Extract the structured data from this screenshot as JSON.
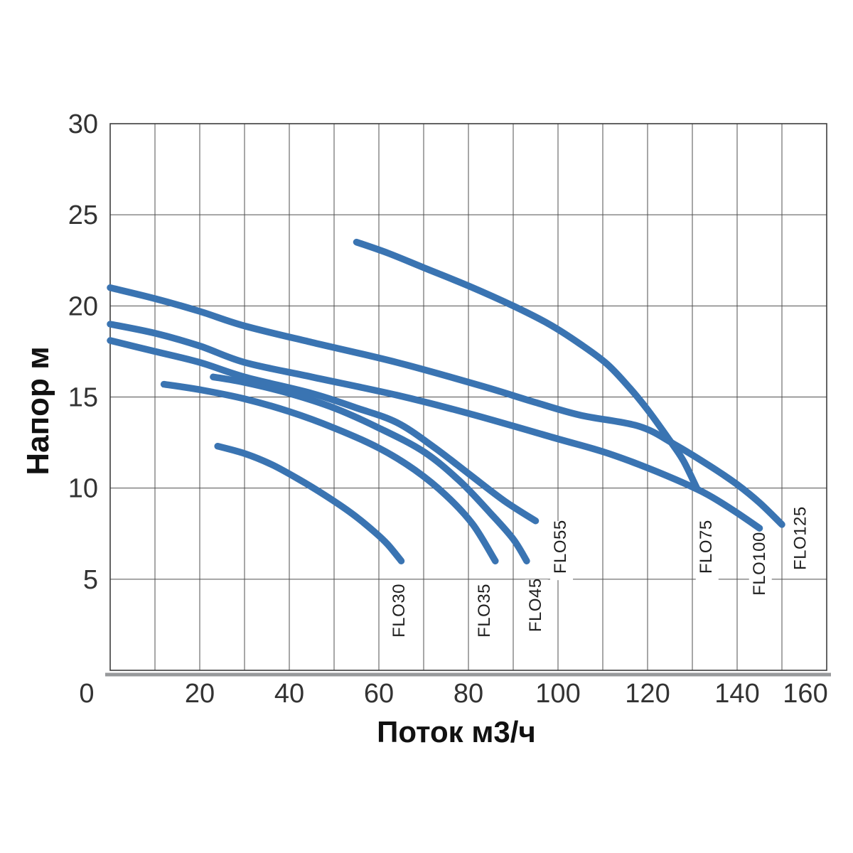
{
  "chart_data": {
    "type": "line",
    "title": "",
    "xlabel": "Поток м3/ч",
    "ylabel": "Напор м",
    "xlim": [
      0,
      160
    ],
    "ylim": [
      0,
      30
    ],
    "x_grid_step": 10,
    "y_grid_step": 5,
    "x_tick_step": 20,
    "x_tick_labels": [
      "0",
      "20",
      "40",
      "60",
      "80",
      "100",
      "120",
      "140",
      "160"
    ],
    "y_tick_labels": [
      "5",
      "10",
      "15",
      "20",
      "25",
      "30"
    ],
    "grid": true,
    "legend_position": "rotated-labels-at-curve-ends",
    "series": [
      {
        "name": "FLO30",
        "points": [
          [
            24,
            12.3
          ],
          [
            30,
            11.9
          ],
          [
            36,
            11.3
          ],
          [
            42,
            10.5
          ],
          [
            48,
            9.6
          ],
          [
            54,
            8.6
          ],
          [
            59,
            7.6
          ],
          [
            62,
            6.9
          ],
          [
            65,
            6.0
          ]
        ],
        "label": {
          "flow": 64.8,
          "head": 1.8
        }
      },
      {
        "name": "FLO35",
        "points": [
          [
            12,
            15.7
          ],
          [
            20,
            15.4
          ],
          [
            30,
            14.9
          ],
          [
            40,
            14.2
          ],
          [
            50,
            13.3
          ],
          [
            60,
            12.2
          ],
          [
            68,
            11.0
          ],
          [
            75,
            9.6
          ],
          [
            81,
            8.0
          ],
          [
            86,
            6.0
          ]
        ],
        "label": {
          "flow": 83.8,
          "head": 1.8
        }
      },
      {
        "name": "FLO45",
        "points": [
          [
            23,
            16.1
          ],
          [
            30,
            15.8
          ],
          [
            40,
            15.2
          ],
          [
            50,
            14.4
          ],
          [
            60,
            13.3
          ],
          [
            70,
            12.0
          ],
          [
            78,
            10.4
          ],
          [
            85,
            8.6
          ],
          [
            90,
            7.2
          ],
          [
            93,
            6.0
          ]
        ],
        "label": {
          "flow": 95.2,
          "head": 2.1
        }
      },
      {
        "name": "FLO55",
        "points": [
          [
            0,
            18.1
          ],
          [
            10,
            17.5
          ],
          [
            20,
            16.9
          ],
          [
            30,
            16.1
          ],
          [
            45,
            15.2
          ],
          [
            55,
            14.4
          ],
          [
            64,
            13.6
          ],
          [
            72,
            12.3
          ],
          [
            80,
            10.8
          ],
          [
            88,
            9.3
          ],
          [
            95,
            8.2
          ]
        ],
        "label": {
          "flow": 100.8,
          "head": 5.3
        }
      },
      {
        "name": "FLO75",
        "points": [
          [
            55,
            23.5
          ],
          [
            62,
            22.9
          ],
          [
            70,
            22.1
          ],
          [
            80,
            21.1
          ],
          [
            90,
            20.0
          ],
          [
            98,
            19.0
          ],
          [
            105,
            17.9
          ],
          [
            111,
            16.8
          ],
          [
            116,
            15.5
          ],
          [
            120,
            14.3
          ],
          [
            125,
            12.6
          ],
          [
            128,
            11.5
          ],
          [
            131,
            10.0
          ]
        ],
        "label": {
          "flow": 133.3,
          "head": 5.3
        }
      },
      {
        "name": "FLO100",
        "points": [
          [
            0,
            19.0
          ],
          [
            10,
            18.5
          ],
          [
            20,
            17.8
          ],
          [
            30,
            16.9
          ],
          [
            45,
            16.1
          ],
          [
            64,
            15.1
          ],
          [
            80,
            14.1
          ],
          [
            100,
            12.7
          ],
          [
            110,
            12.0
          ],
          [
            118,
            11.3
          ],
          [
            126,
            10.5
          ],
          [
            133,
            9.7
          ],
          [
            139,
            8.8
          ],
          [
            145,
            7.8
          ]
        ],
        "label": {
          "flow": 145.2,
          "head": 4.1
        }
      },
      {
        "name": "FLO125",
        "points": [
          [
            0,
            21.0
          ],
          [
            10,
            20.4
          ],
          [
            20,
            19.7
          ],
          [
            30,
            18.9
          ],
          [
            45,
            18.0
          ],
          [
            64,
            16.9
          ],
          [
            83,
            15.6
          ],
          [
            95,
            14.7
          ],
          [
            105,
            14.0
          ],
          [
            118,
            13.4
          ],
          [
            126,
            12.4
          ],
          [
            134,
            11.2
          ],
          [
            140,
            10.2
          ],
          [
            145,
            9.2
          ],
          [
            150,
            8.0
          ]
        ],
        "label": {
          "flow": 154.4,
          "head": 5.5
        }
      }
    ],
    "style": {
      "curve_color": "#3a74b2",
      "grid_color": "#4f4f4f",
      "border_color": "#3d3d3d",
      "axis_shadow_color": "#97999b",
      "tick_text_color": "#333333",
      "label_text_color": "#1f1f1f",
      "background_color": "#ffffff"
    }
  }
}
